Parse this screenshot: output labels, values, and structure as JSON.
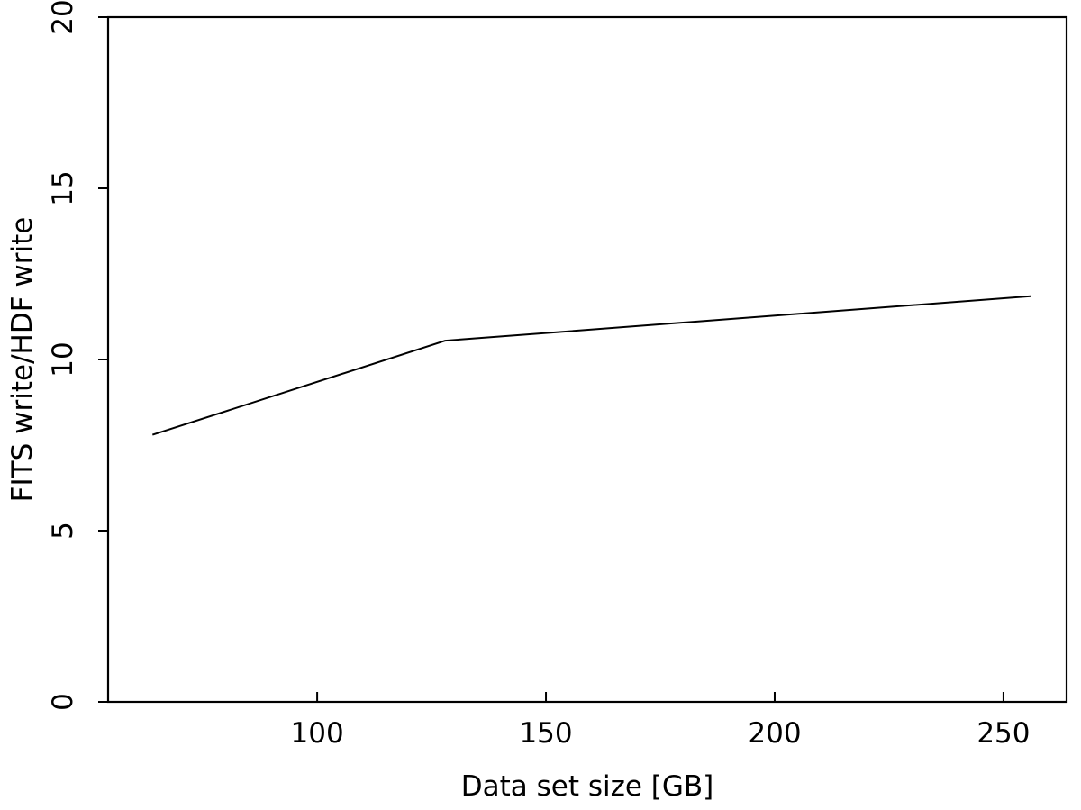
{
  "chart_data": {
    "type": "line",
    "title": "",
    "xlabel": "Data set size [GB]",
    "ylabel": "FITS write/HDF write",
    "xlim": [
      54.3,
      263.8
    ],
    "ylim": [
      0,
      20
    ],
    "x_ticks": [
      100,
      150,
      200,
      250
    ],
    "y_ticks": [
      0,
      5,
      10,
      15,
      20
    ],
    "grid": false,
    "legend": "none",
    "series": [
      {
        "x": [
          64,
          128,
          256
        ],
        "y": [
          7.8,
          10.55,
          11.85
        ],
        "color": "#000000"
      }
    ]
  }
}
